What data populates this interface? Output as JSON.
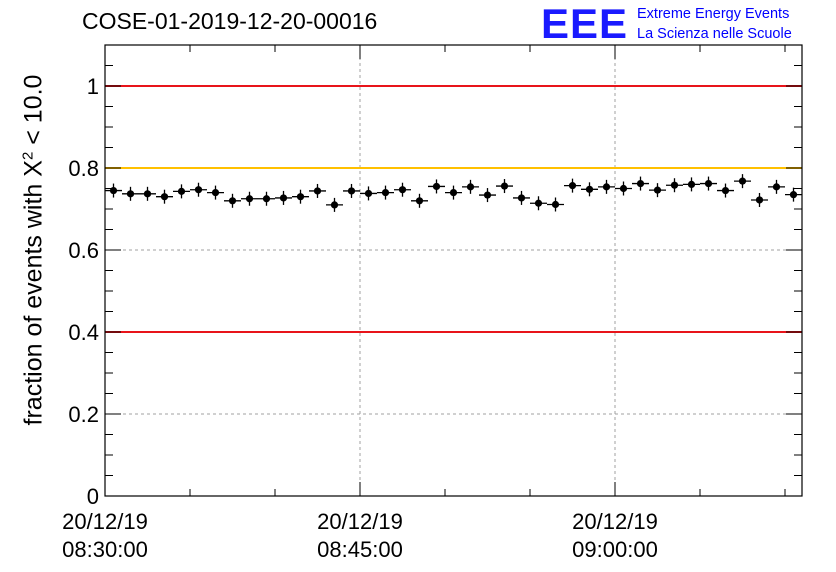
{
  "title": "COSE-01-2019-12-20-00016",
  "logo": {
    "mark": "EEE",
    "line1": "Extreme Energy Events",
    "line2": "La Scienza nelle Scuole"
  },
  "chart_data": {
    "type": "scatter",
    "title": "COSE-01-2019-12-20-00016",
    "ylabel_prefix": "fraction of events with ",
    "ylabel_symbol": "X",
    "ylabel_sup": "2",
    "ylabel_suffix": " < 10.0",
    "xlabel": "",
    "ylim": [
      0,
      1.1
    ],
    "yticks": [
      "0",
      "0.2",
      "0.4",
      "0.6",
      "0.8",
      "1"
    ],
    "ytick_values": [
      0,
      0.2,
      0.4,
      0.6,
      0.8,
      1.0
    ],
    "xlim_minutes": [
      0,
      41
    ],
    "xticks": [
      {
        "date": "20/12/19",
        "time": "08:30:00",
        "minute": 0
      },
      {
        "date": "20/12/19",
        "time": "08:45:00",
        "minute": 15
      },
      {
        "date": "20/12/19",
        "time": "09:00:00",
        "minute": 30
      }
    ],
    "grid": true,
    "reference_lines": [
      {
        "y": 1.0,
        "color": "#e8141a"
      },
      {
        "y": 0.8,
        "color": "#ffc000"
      },
      {
        "y": 0.4,
        "color": "#e8141a"
      }
    ],
    "marker_color": "#000000",
    "series": [
      {
        "name": "fraction",
        "x_minutes": [
          0.5,
          1.5,
          2.5,
          3.5,
          4.5,
          5.5,
          6.5,
          7.5,
          8.5,
          9.5,
          10.5,
          11.5,
          12.5,
          13.5,
          14.5,
          15.5,
          16.5,
          17.5,
          18.5,
          19.5,
          20.5,
          21.5,
          22.5,
          23.5,
          24.5,
          25.5,
          26.5,
          27.5,
          28.5,
          29.5,
          30.5,
          31.5,
          32.5,
          33.5,
          34.5,
          35.5,
          36.5,
          37.5,
          38.5,
          39.5,
          40.5
        ],
        "values": [
          0.745,
          0.737,
          0.737,
          0.73,
          0.743,
          0.747,
          0.74,
          0.72,
          0.725,
          0.725,
          0.727,
          0.73,
          0.744,
          0.71,
          0.744,
          0.738,
          0.74,
          0.747,
          0.72,
          0.755,
          0.74,
          0.754,
          0.734,
          0.756,
          0.727,
          0.714,
          0.711,
          0.757,
          0.748,
          0.754,
          0.75,
          0.762,
          0.746,
          0.758,
          0.76,
          0.762,
          0.745,
          0.768,
          0.722,
          0.754,
          0.735
        ]
      }
    ]
  }
}
